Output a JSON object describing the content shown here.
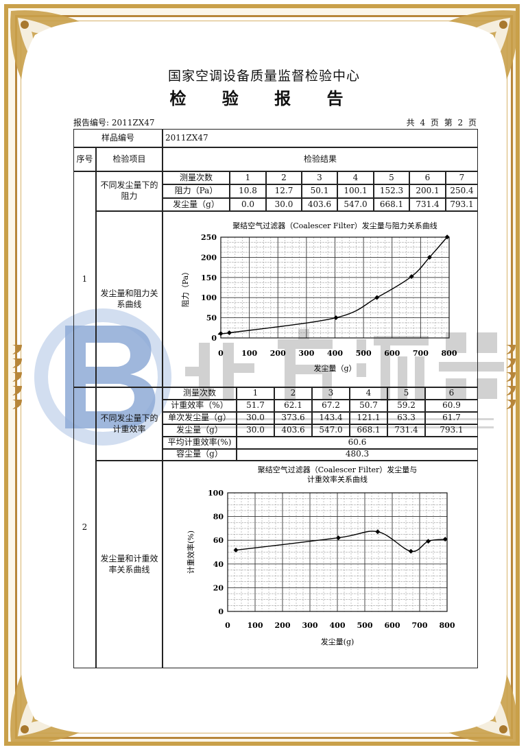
{
  "header": {
    "organization": "国家空调设备质量监督检验中心",
    "title": "检 验 报 告",
    "report_no_label": "报告编号: 2011ZX47",
    "page_info": "共 4 页 第 2 页"
  },
  "watermark": {
    "logo_letter": "B",
    "brand_cn": "北方滤器",
    "brand_en": "XINXIANG BEIFANG FILTER CO.,LTD."
  },
  "colors": {
    "frame_gold": "#c9a04a",
    "watermark_blue": "#9fb8dc",
    "watermark_gray": "#9a9a9a"
  },
  "table": {
    "sample_no_label": "样品编号",
    "sample_no": "2011ZX47",
    "col_seq": "序号",
    "col_item": "检验项目",
    "col_result": "检验结果",
    "items": [
      {
        "seq": "1",
        "resistance_item": "不同发尘量下的阻力",
        "curve_item": "发尘量和阻力关系曲线",
        "rows": [
          {
            "label": "测量次数",
            "values": [
              "1",
              "2",
              "3",
              "4",
              "5",
              "6",
              "7"
            ]
          },
          {
            "label": "阻力（Pa）",
            "values": [
              "10.8",
              "12.7",
              "50.1",
              "100.1",
              "152.3",
              "200.1",
              "250.4"
            ]
          },
          {
            "label": "发尘量（g）",
            "values": [
              "0.0",
              "30.0",
              "403.6",
              "547.0",
              "668.1",
              "731.4",
              "793.1"
            ]
          }
        ]
      },
      {
        "seq": "2",
        "efficiency_item": "不同发尘量下的计重效率",
        "curve_item": "发尘量和计重效率关系曲线",
        "rows": [
          {
            "label": "测量次数",
            "values": [
              "1",
              "2",
              "3",
              "4",
              "5",
              "6"
            ]
          },
          {
            "label": "计重效率（%）",
            "values": [
              "51.7",
              "62.1",
              "67.2",
              "50.7",
              "59.2",
              "60.9"
            ]
          },
          {
            "label": "单次发尘量（g）",
            "values": [
              "30.0",
              "373.6",
              "143.4",
              "121.1",
              "63.3",
              "61.7"
            ]
          },
          {
            "label": "发尘量（g）",
            "values": [
              "30.0",
              "403.6",
              "547.0",
              "668.1",
              "731.4",
              "793.1"
            ]
          }
        ],
        "avg_label": "平均计重效率(%)",
        "avg_value": "60.6",
        "capacity_label": "容尘量（g）",
        "capacity_value": "480.3"
      }
    ]
  },
  "chart_data": [
    {
      "type": "line",
      "title": "聚结空气过滤器（Coalescer Filter）发尘量与阻力关系曲线",
      "xlabel": "发尘量（g）",
      "ylabel": "阻力（Pa）",
      "xlim": [
        0,
        800
      ],
      "ylim": [
        0,
        250
      ],
      "xticks": [
        "0",
        "100",
        "200",
        "300",
        "400",
        "500",
        "600",
        "700",
        "800"
      ],
      "yticks": [
        "0",
        "50",
        "100",
        "150",
        "200",
        "250"
      ],
      "grid": true,
      "x": [
        0.0,
        30.0,
        403.6,
        547.0,
        668.1,
        731.4,
        793.1
      ],
      "y": [
        10.8,
        12.7,
        50.1,
        100.1,
        152.3,
        200.1,
        250.4
      ]
    },
    {
      "type": "line",
      "title": "聚结空气过滤器（Coalescer Filter）发尘量与",
      "title_line2": "计重效率关系曲线",
      "xlabel": "发尘量(g)",
      "ylabel": "计重效率(%)",
      "xlim": [
        0,
        800
      ],
      "ylim": [
        0,
        100
      ],
      "xticks": [
        "0",
        "100",
        "200",
        "300",
        "400",
        "500",
        "600",
        "700",
        "800"
      ],
      "yticks": [
        "0",
        "20",
        "40",
        "60",
        "80",
        "100"
      ],
      "grid": true,
      "x": [
        30.0,
        403.6,
        547.0,
        668.1,
        731.4,
        793.1
      ],
      "y": [
        51.7,
        62.1,
        67.2,
        50.7,
        59.2,
        60.9
      ]
    }
  ]
}
